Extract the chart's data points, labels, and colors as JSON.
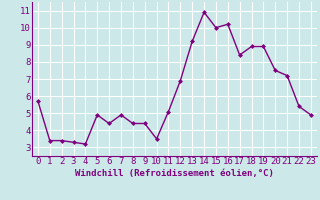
{
  "x": [
    0,
    1,
    2,
    3,
    4,
    5,
    6,
    7,
    8,
    9,
    10,
    11,
    12,
    13,
    14,
    15,
    16,
    17,
    18,
    19,
    20,
    21,
    22,
    23
  ],
  "y": [
    5.7,
    3.4,
    3.4,
    3.3,
    3.2,
    4.9,
    4.4,
    4.9,
    4.4,
    4.4,
    3.5,
    5.1,
    6.9,
    9.2,
    10.9,
    10.0,
    10.2,
    8.4,
    8.9,
    8.9,
    7.5,
    7.2,
    5.4,
    4.9
  ],
  "line_color": "#800080",
  "marker_color": "#800080",
  "bg_color": "#cce8e8",
  "grid_color": "#ffffff",
  "axis_color": "#800080",
  "xlabel": "Windchill (Refroidissement éolien,°C)",
  "xlim": [
    -0.5,
    23.5
  ],
  "ylim": [
    2.5,
    11.5
  ],
  "yticks": [
    3,
    4,
    5,
    6,
    7,
    8,
    9,
    10,
    11
  ],
  "xticks": [
    0,
    1,
    2,
    3,
    4,
    5,
    6,
    7,
    8,
    9,
    10,
    11,
    12,
    13,
    14,
    15,
    16,
    17,
    18,
    19,
    20,
    21,
    22,
    23
  ],
  "tick_fontsize": 6.5,
  "xlabel_fontsize": 6.5,
  "line_width": 1.0,
  "marker_size": 2.0
}
